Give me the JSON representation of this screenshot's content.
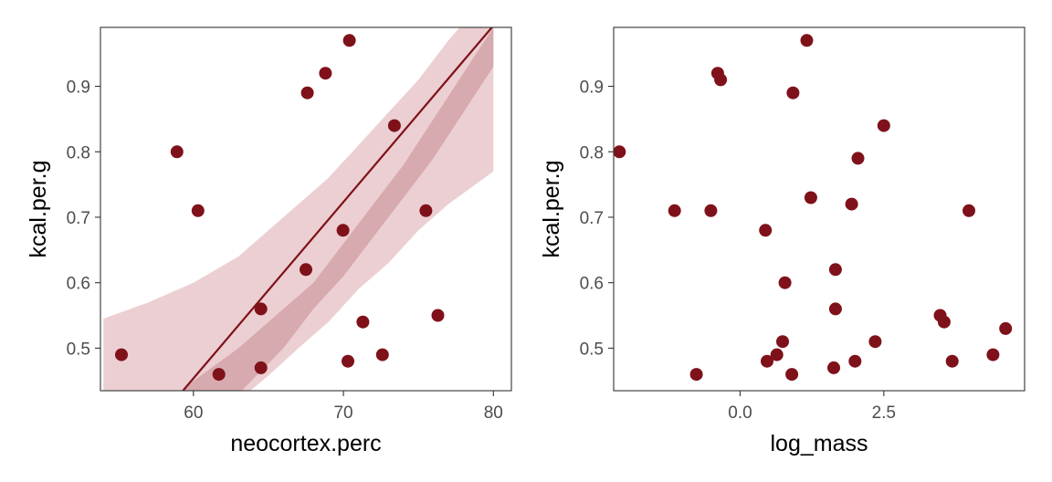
{
  "colors": {
    "point": "#7f111a",
    "line": "#7f111a",
    "band_outer": "#e9c7ca",
    "band_inner": "#cf9a9f",
    "frame": "#333333",
    "tick_text": "#4d4d4d"
  },
  "chart_data": [
    {
      "type": "scatter",
      "title": "",
      "xlabel": "neocortex.perc",
      "ylabel": "kcal.per.g",
      "xlim": [
        53.8,
        81.2
      ],
      "ylim": [
        0.435,
        0.99
      ],
      "xticks": [
        60,
        70,
        80
      ],
      "xtick_labels": [
        "60",
        "70",
        "80"
      ],
      "yticks": [
        0.5,
        0.6,
        0.7,
        0.8,
        0.9
      ],
      "ytick_labels": [
        "0.5",
        "0.6",
        "0.7",
        "0.8",
        "0.9"
      ],
      "grid": false,
      "points": [
        {
          "x": 55.2,
          "y": 0.49
        },
        {
          "x": 58.9,
          "y": 0.8
        },
        {
          "x": 60.3,
          "y": 0.71
        },
        {
          "x": 61.7,
          "y": 0.46
        },
        {
          "x": 64.5,
          "y": 0.56
        },
        {
          "x": 64.5,
          "y": 0.47
        },
        {
          "x": 67.5,
          "y": 0.62
        },
        {
          "x": 67.6,
          "y": 0.89
        },
        {
          "x": 68.8,
          "y": 0.92
        },
        {
          "x": 69.97,
          "y": 0.68
        },
        {
          "x": 70.3,
          "y": 0.48
        },
        {
          "x": 70.4,
          "y": 0.97
        },
        {
          "x": 71.3,
          "y": 0.54
        },
        {
          "x": 72.6,
          "y": 0.49
        },
        {
          "x": 73.4,
          "y": 0.84
        },
        {
          "x": 75.5,
          "y": 0.71
        },
        {
          "x": 76.3,
          "y": 0.55
        }
      ],
      "fit_line": {
        "x": [
          59.3,
          79.9
        ],
        "y": [
          0.435,
          0.99
        ]
      },
      "band_outer": {
        "x": [
          54,
          57,
          60,
          63,
          65,
          67,
          69,
          71,
          73,
          75,
          77,
          80
        ],
        "lower": [
          0.3,
          0.33,
          0.37,
          0.42,
          0.458,
          0.5,
          0.54,
          0.59,
          0.63,
          0.68,
          0.72,
          0.77
        ],
        "upper": [
          0.545,
          0.57,
          0.6,
          0.64,
          0.68,
          0.72,
          0.76,
          0.81,
          0.86,
          0.91,
          0.97,
          1.05
        ]
      },
      "band_inner": {
        "x": [
          57,
          60,
          63,
          66,
          68,
          70,
          72,
          74,
          76,
          78,
          80
        ],
        "lower": [
          0.3,
          0.36,
          0.43,
          0.5,
          0.56,
          0.61,
          0.67,
          0.73,
          0.79,
          0.86,
          0.93
        ],
        "upper": [
          0.39,
          0.45,
          0.5,
          0.56,
          0.6,
          0.66,
          0.72,
          0.78,
          0.85,
          0.92,
          0.99
        ]
      }
    },
    {
      "type": "scatter",
      "title": "",
      "xlabel": "log_mass",
      "ylabel": "kcal.per.g",
      "xlim": [
        -2.2,
        4.95
      ],
      "ylim": [
        0.435,
        0.99
      ],
      "xticks": [
        0.0,
        2.5
      ],
      "xtick_labels": [
        "0.0",
        "2.5"
      ],
      "yticks": [
        0.5,
        0.6,
        0.7,
        0.8,
        0.9
      ],
      "ytick_labels": [
        "0.5",
        "0.6",
        "0.7",
        "0.8",
        "0.9"
      ],
      "grid": false,
      "points": [
        {
          "x": -2.1,
          "y": 0.8
        },
        {
          "x": -1.14,
          "y": 0.71
        },
        {
          "x": -0.76,
          "y": 0.46
        },
        {
          "x": -0.51,
          "y": 0.71
        },
        {
          "x": -0.39,
          "y": 0.92
        },
        {
          "x": -0.34,
          "y": 0.91
        },
        {
          "x": 0.44,
          "y": 0.68
        },
        {
          "x": 0.47,
          "y": 0.48
        },
        {
          "x": 0.64,
          "y": 0.49
        },
        {
          "x": 0.74,
          "y": 0.51
        },
        {
          "x": 0.78,
          "y": 0.6
        },
        {
          "x": 0.9,
          "y": 0.46
        },
        {
          "x": 0.92,
          "y": 0.89
        },
        {
          "x": 1.16,
          "y": 0.97
        },
        {
          "x": 1.23,
          "y": 0.73
        },
        {
          "x": 1.63,
          "y": 0.47
        },
        {
          "x": 1.66,
          "y": 0.62
        },
        {
          "x": 1.66,
          "y": 0.56
        },
        {
          "x": 1.94,
          "y": 0.72
        },
        {
          "x": 2.0,
          "y": 0.48
        },
        {
          "x": 2.05,
          "y": 0.79
        },
        {
          "x": 2.35,
          "y": 0.51
        },
        {
          "x": 2.5,
          "y": 0.84
        },
        {
          "x": 3.48,
          "y": 0.55
        },
        {
          "x": 3.55,
          "y": 0.54
        },
        {
          "x": 3.69,
          "y": 0.48
        },
        {
          "x": 3.98,
          "y": 0.71
        },
        {
          "x": 4.4,
          "y": 0.49
        },
        {
          "x": 4.62,
          "y": 0.53
        }
      ]
    }
  ]
}
